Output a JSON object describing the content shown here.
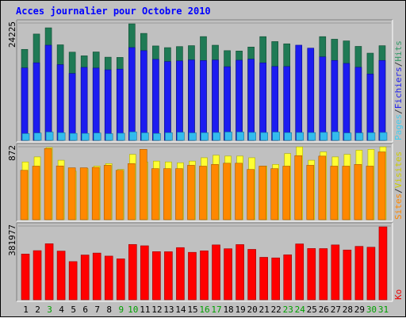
{
  "chart_data": {
    "title": "Acces journalier pour Octobre 2010",
    "type": "bar",
    "days": [
      "1",
      "2",
      "3",
      "4",
      "5",
      "6",
      "7",
      "8",
      "9",
      "10",
      "11",
      "12",
      "13",
      "14",
      "15",
      "16",
      "17",
      "18",
      "19",
      "20",
      "21",
      "22",
      "23",
      "24",
      "25",
      "26",
      "27",
      "28",
      "29",
      "30",
      "31"
    ],
    "weekend_days": [
      "3",
      "9",
      "10",
      "16",
      "17",
      "23",
      "24",
      "30",
      "31"
    ],
    "panels": [
      {
        "id": "traffic-top",
        "max_label": "24225",
        "ymax": 24225,
        "axis_label_parts": [
          {
            "text": "Pages",
            "color": "#44ccee"
          },
          {
            "text": "/",
            "color": "#333333"
          },
          {
            "text": "Fichiers",
            "color": "#2222ee"
          },
          {
            "text": "/",
            "color": "#333333"
          },
          {
            "text": "Hits",
            "color": "#339966"
          }
        ],
        "series": [
          {
            "name": "Hits",
            "color": "#1f7a55",
            "values": [
              18780,
              21950,
              23230,
              19720,
              18210,
              17450,
              18250,
              17170,
              17120,
              24050,
              22080,
              19490,
              19140,
              19360,
              19550,
              21420,
              19640,
              18520,
              18440,
              19260,
              21410,
              20390,
              19930,
              18420,
              18710,
              21410,
              20880,
              20530,
              19400,
              18000,
              19540
            ]
          },
          {
            "name": "Fichiers",
            "color": "#1c1cf0",
            "values": [
              14950,
              16010,
              19640,
              15630,
              13810,
              15060,
              14920,
              14560,
              14700,
              19150,
              18510,
              16720,
              16260,
              16400,
              16600,
              16470,
              16590,
              15200,
              16540,
              16760,
              16000,
              15250,
              15240,
              19650,
              19040,
              17230,
              16490,
              15880,
              15080,
              13690,
              16490
            ]
          },
          {
            "name": "Pages",
            "color": "#33bbee",
            "values": [
              1400,
              1520,
              1720,
              1580,
              1450,
              1440,
              1520,
              1390,
              1480,
              1740,
              1560,
              1430,
              1580,
              1670,
              1550,
              1580,
              1620,
              1720,
              1720,
              1640,
              1620,
              1710,
              1600,
              1630,
              1600,
              1650,
              1760,
              1530,
              1540,
              1590,
              1630
            ]
          }
        ]
      },
      {
        "id": "traffic-mid",
        "max_label": "872",
        "ymax": 872,
        "axis_label_parts": [
          {
            "text": "Sites",
            "color": "#ff8800"
          },
          {
            "text": "/",
            "color": "#333333"
          },
          {
            "text": "Visites",
            "color": "#cccc00"
          }
        ],
        "series": [
          {
            "name": "Visites",
            "color": "#ffff33",
            "values": [
              690,
              750,
              862,
              710,
              580,
              610,
              640,
              670,
              600,
              780,
              690,
              700,
              690,
              680,
              700,
              740,
              770,
              760,
              760,
              740,
              640,
              660,
              790,
              870,
              710,
              810,
              750,
              780,
              830,
              840,
              870
            ]
          },
          {
            "name": "Sites",
            "color": "#ff8800",
            "values": [
              590,
              640,
              850,
              642,
              620,
              620,
              625,
              650,
              590,
              670,
              840,
              610,
              610,
              610,
              650,
              640,
              660,
              675,
              675,
              600,
              640,
              610,
              640,
              765,
              650,
              760,
              640,
              640,
              660,
              640,
              810
            ]
          }
        ]
      },
      {
        "id": "traffic-bottom",
        "max_label": "381977",
        "ymax": 381977,
        "axis_label_parts": [
          {
            "text": "Ko",
            "color": "#ee0000"
          }
        ],
        "series": [
          {
            "name": "Ko",
            "color": "#ff0000",
            "values": [
              236930,
              254440,
              290200,
              252170,
              197710,
              231870,
              241950,
              226260,
              211880,
              286400,
              279480,
              249230,
              248710,
              270120,
              245730,
              253500,
              284120,
              264300,
              285820,
              260960,
              219830,
              216880,
              232960,
              289300,
              265390,
              265010,
              284060,
              257820,
              276620,
              272250,
              377610
            ]
          }
        ]
      }
    ]
  },
  "colors": {
    "background": "#c0c0c0",
    "title": "#0000ff",
    "weekday_label": "#000000",
    "weekend_label": "#00a000"
  }
}
